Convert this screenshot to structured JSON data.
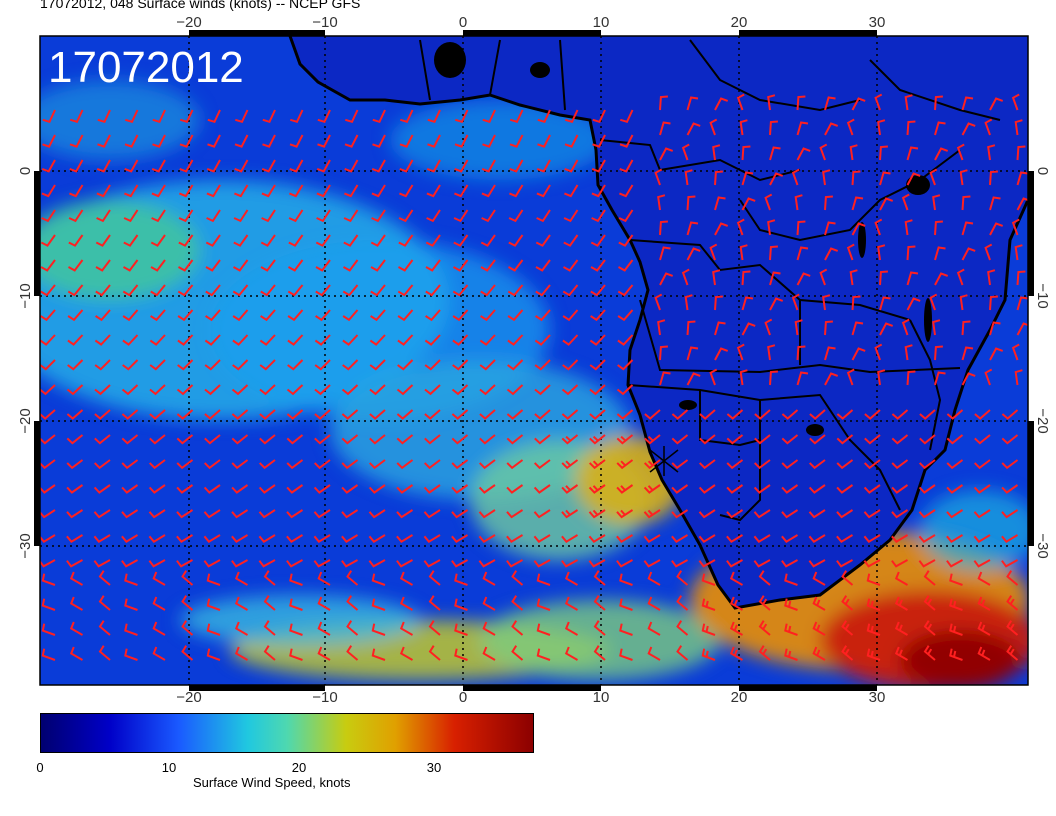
{
  "title": "17072012, 048 Surface winds (knots) -- NCEP GFS",
  "date_label": "17072012",
  "map": {
    "lon_ticks": [
      "−20",
      "−10",
      "0",
      "10",
      "20",
      "30"
    ],
    "lat_ticks": [
      "0",
      "−10",
      "−20",
      "−30"
    ],
    "lon_range": [
      -30,
      40
    ],
    "lat_range": [
      -40,
      10
    ],
    "ocean_color": "#0a3cd8",
    "land_color": "#0a28c8",
    "barb_color": "#ff2020",
    "coast_color": "#000000"
  },
  "colorbar": {
    "label": "Surface Wind Speed, knots",
    "ticks": [
      "0",
      "10",
      "20",
      "30"
    ],
    "range": [
      0,
      38
    ]
  }
}
